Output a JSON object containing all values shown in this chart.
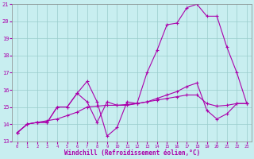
{
  "xlabel": "Windchill (Refroidissement éolien,°C)",
  "ylabel": "",
  "xlim": [
    -0.5,
    23.5
  ],
  "ylim": [
    13,
    21
  ],
  "xticks": [
    0,
    1,
    2,
    3,
    4,
    5,
    6,
    7,
    8,
    9,
    10,
    11,
    12,
    13,
    14,
    15,
    16,
    17,
    18,
    19,
    20,
    21,
    22,
    23
  ],
  "yticks": [
    13,
    14,
    15,
    16,
    17,
    18,
    19,
    20,
    21
  ],
  "bg_color": "#c8eef0",
  "grid_color": "#99cccc",
  "line_color": "#aa00aa",
  "line1_x": [
    0,
    1,
    2,
    3,
    4,
    5,
    6,
    7,
    8,
    9,
    10,
    11,
    12,
    13,
    14,
    15,
    16,
    17,
    18,
    19,
    20,
    21,
    22,
    23
  ],
  "line1_y": [
    13.5,
    14.0,
    14.1,
    14.1,
    15.0,
    15.0,
    15.8,
    16.5,
    15.3,
    13.3,
    13.8,
    15.3,
    15.2,
    17.0,
    18.3,
    19.8,
    19.9,
    20.8,
    21.0,
    20.3,
    20.3,
    18.5,
    17.0,
    15.2
  ],
  "line2_x": [
    0,
    1,
    2,
    3,
    4,
    5,
    6,
    7,
    8,
    9,
    10,
    11,
    12,
    13,
    14,
    15,
    16,
    17,
    18,
    19,
    20,
    21,
    22,
    23
  ],
  "line2_y": [
    13.5,
    14.0,
    14.1,
    14.1,
    15.0,
    15.0,
    15.8,
    15.3,
    14.1,
    15.3,
    15.1,
    15.1,
    15.2,
    15.3,
    15.5,
    15.7,
    15.9,
    16.2,
    16.4,
    14.8,
    14.3,
    14.6,
    15.2,
    15.2
  ],
  "line3_x": [
    0,
    1,
    2,
    3,
    4,
    5,
    6,
    7,
    8,
    9,
    10,
    11,
    12,
    13,
    14,
    15,
    16,
    17,
    18,
    19,
    20,
    21,
    22,
    23
  ],
  "line3_y": [
    13.5,
    14.0,
    14.1,
    14.2,
    14.3,
    14.5,
    14.7,
    15.0,
    15.05,
    15.1,
    15.1,
    15.15,
    15.2,
    15.3,
    15.4,
    15.5,
    15.6,
    15.7,
    15.7,
    15.2,
    15.05,
    15.1,
    15.2,
    15.2
  ]
}
